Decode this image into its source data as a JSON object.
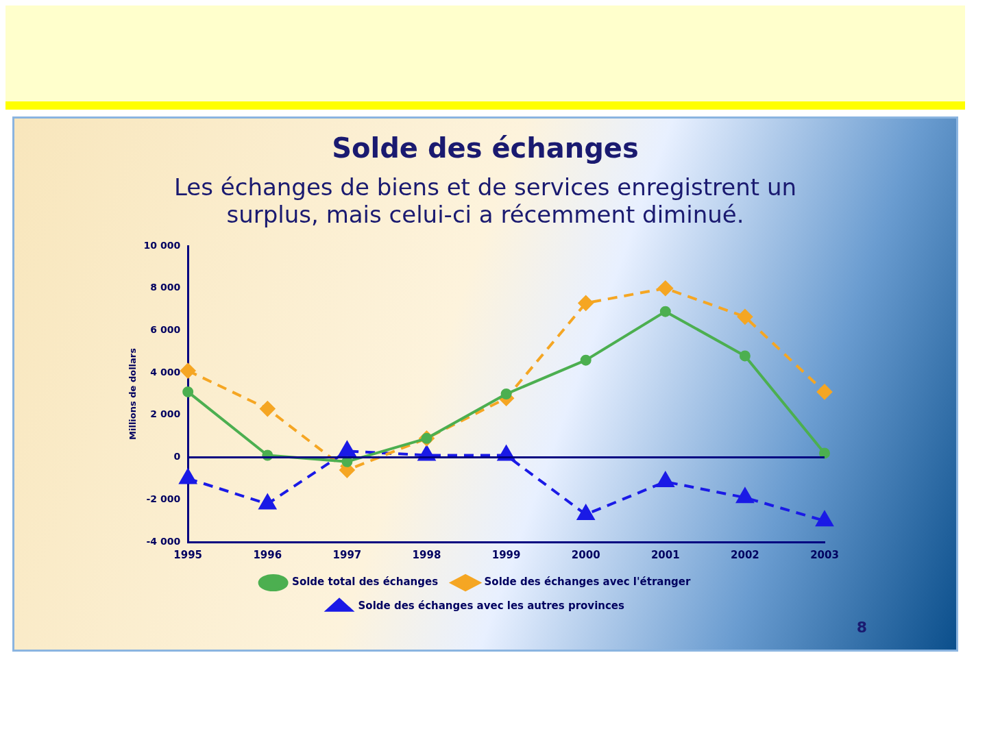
{
  "chart_data": {
    "type": "line",
    "title": "Solde des échanges",
    "subtitle": "Les échanges de biens et de services enregistrent un surplus, mais celui-ci a récemment diminué.",
    "ylabel": "Millions de dollars",
    "categories": [
      "1995",
      "1996",
      "1997",
      "1998",
      "1999",
      "2000",
      "2001",
      "2002",
      "2003"
    ],
    "series": [
      {
        "name": "Solde total des échanges",
        "color": "#4caf50",
        "marker": "circle",
        "line_style": "solid",
        "values": [
          3100,
          100,
          -200,
          900,
          3000,
          4600,
          6900,
          4800,
          200
        ]
      },
      {
        "name": "Solde des échanges avec l'étranger",
        "color": "#f5a623",
        "marker": "diamond",
        "line_style": "dashed",
        "values": [
          4100,
          2300,
          -600,
          900,
          2800,
          7300,
          8000,
          6650,
          3100
        ]
      },
      {
        "name": "Solde des échanges avec les autres provinces",
        "color": "#1a1ae6",
        "marker": "triangle",
        "line_style": "dashed",
        "values": [
          -1000,
          -2200,
          300,
          100,
          100,
          -2700,
          -1150,
          -1900,
          -3000
        ]
      }
    ],
    "ylim": [
      -4000,
      10000
    ],
    "yticks": [
      {
        "value": -4000,
        "label": "-4 000"
      },
      {
        "value": -2000,
        "label": "-2 000"
      },
      {
        "value": 0,
        "label": "0"
      },
      {
        "value": 2000,
        "label": "2 000"
      },
      {
        "value": 4000,
        "label": "4 000"
      },
      {
        "value": 6000,
        "label": "6 000"
      },
      {
        "value": 8000,
        "label": "8 000"
      },
      {
        "value": 10000,
        "label": "10 000"
      }
    ],
    "ref_lines": [
      {
        "axis": "y",
        "value": 0,
        "color": "#000080"
      }
    ],
    "grid": false,
    "legend": "bottom",
    "annotations": [
      "8"
    ]
  }
}
